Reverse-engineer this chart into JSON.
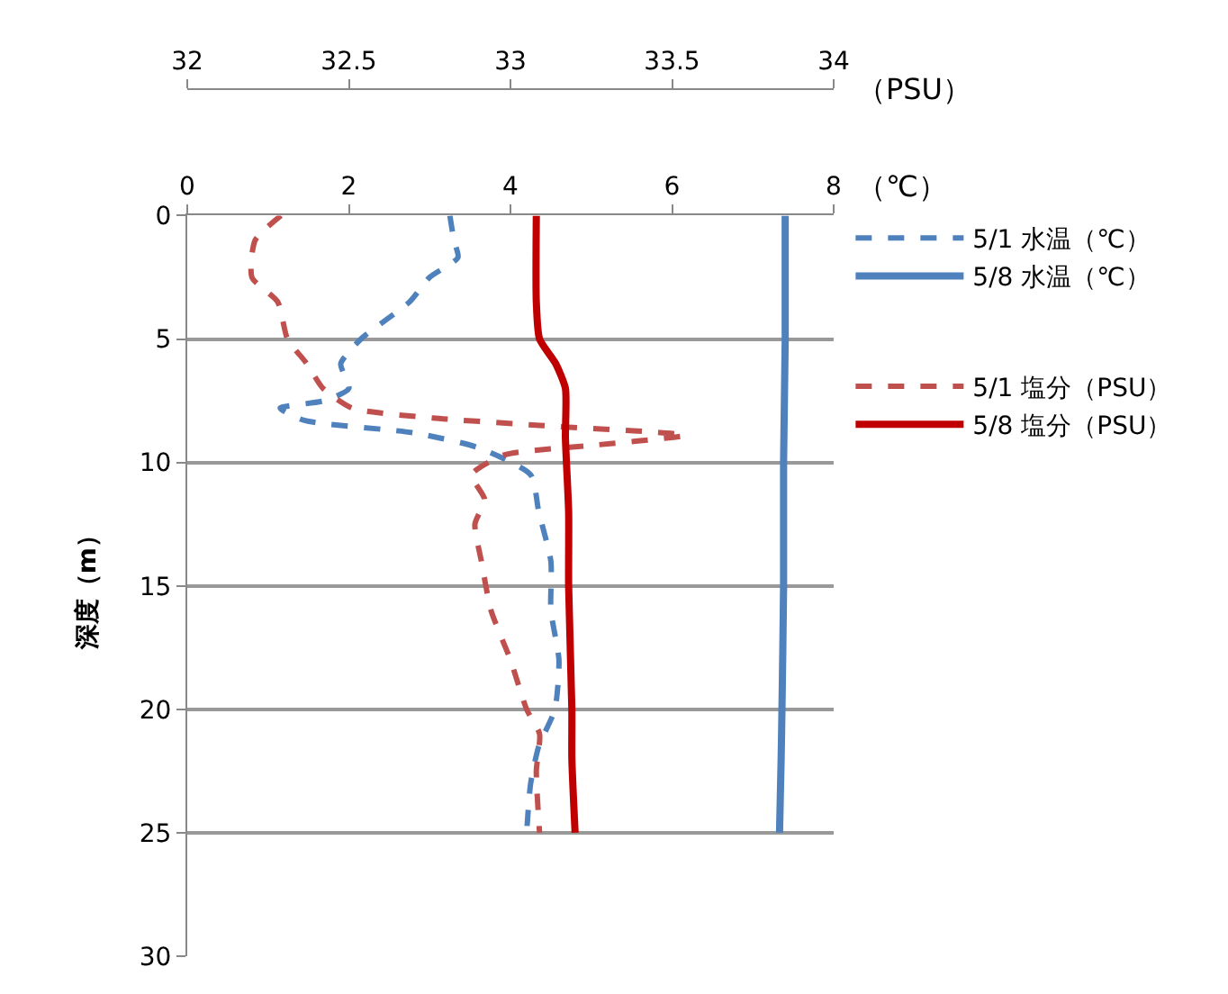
{
  "chart_data": {
    "type": "line",
    "xlabel": "（℃）",
    "x2label": "（PSU）",
    "ylabel": "深度（m）",
    "xlim": [
      0,
      8
    ],
    "xticks": [
      0,
      2,
      4,
      6,
      8
    ],
    "x2lim": [
      32,
      34
    ],
    "x2ticks": [
      32,
      32.5,
      33,
      33.5,
      34
    ],
    "ylim": [
      30,
      0
    ],
    "yticks": [
      0,
      5,
      10,
      15,
      20,
      25,
      30
    ],
    "grid": "y",
    "legend": "right",
    "marker": "none",
    "series": [
      {
        "name": "5/1 水温（℃）",
        "color": "#4f81bd",
        "line_style": "dashed",
        "x": [
          3.25,
          3.3,
          3.35,
          3.0,
          2.75,
          2.15,
          1.9,
          2.0,
          1.7,
          1.15,
          1.45,
          2.8,
          3.6,
          4.25,
          4.35,
          4.5,
          4.5,
          4.6,
          4.55,
          4.35,
          4.25,
          4.2
        ],
        "values": [
          0,
          1,
          1.7,
          2.5,
          3.5,
          5,
          6,
          7,
          7.5,
          7.8,
          8.3,
          8.8,
          9.4,
          10.5,
          12,
          14,
          16,
          18,
          20,
          21.5,
          23,
          25
        ]
      },
      {
        "name": "5/8 水温（℃）",
        "color": "#4f81bd",
        "line_style": "solid",
        "x": [
          7.4,
          7.4,
          7.38,
          7.38,
          7.36,
          7.35,
          7.33
        ],
        "values": [
          0,
          5,
          10,
          15,
          20,
          22,
          25
        ]
      },
      {
        "name": "5/1 塩分（PSU）",
        "color": "#c0504d",
        "line_style": "dashed",
        "axis": "x2",
        "x": [
          32.29,
          32.21,
          32.2,
          32.28,
          32.31,
          32.37,
          32.42,
          32.51,
          32.76,
          33.09,
          33.54,
          33.26,
          32.98,
          32.88,
          32.92,
          32.89,
          32.91,
          32.94,
          33.0,
          33.05,
          33.09,
          33.08,
          33.09
        ],
        "values": [
          0,
          1,
          2.5,
          3.5,
          5,
          6,
          7,
          7.8,
          8.2,
          8.5,
          8.9,
          9.3,
          9.7,
          10.5,
          11.5,
          12.5,
          14,
          16,
          18,
          20,
          21,
          22.5,
          25
        ]
      },
      {
        "name": "5/8 塩分（PSU）",
        "color": "#c00000",
        "line_style": "solid",
        "axis": "x2",
        "x": [
          33.08,
          33.08,
          33.09,
          33.14,
          33.17,
          33.17,
          33.18,
          33.18,
          33.19,
          33.19,
          33.2
        ],
        "values": [
          0,
          3.5,
          5,
          6,
          7,
          9,
          12,
          15,
          20,
          22,
          25
        ]
      }
    ]
  }
}
